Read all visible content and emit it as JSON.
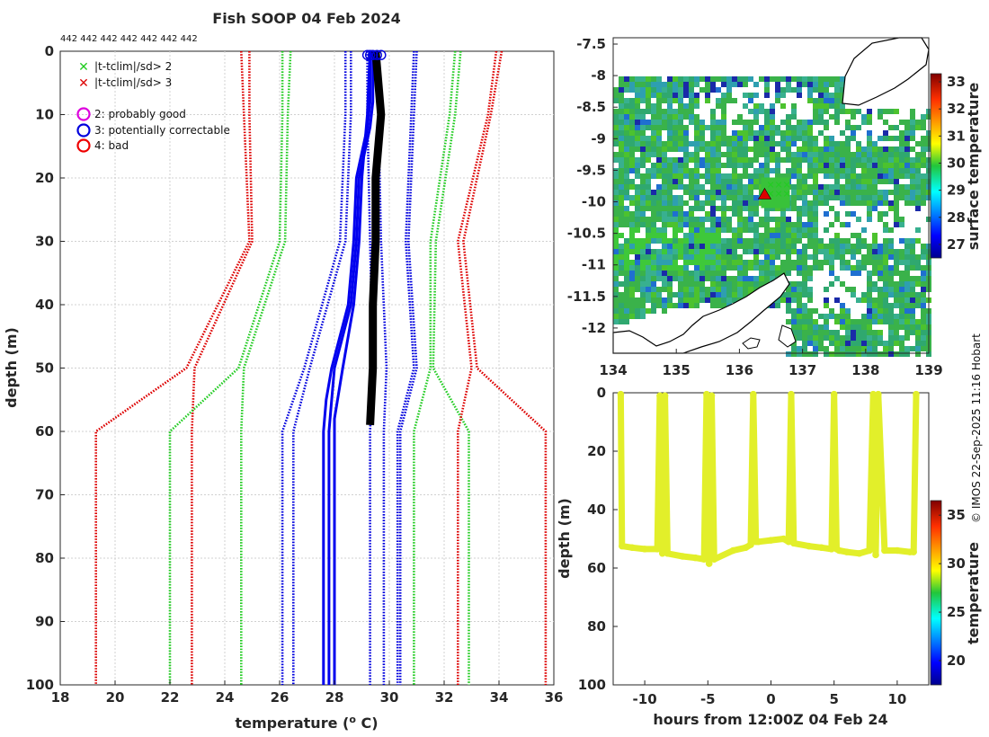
{
  "chart_data": [
    {
      "type": "line",
      "panel": "profile",
      "title": "Fish SOOP 04 Feb 2024",
      "top_counts": "442 442 442 442 442 442 442",
      "xlabel": "temperature (o C)",
      "xlabel_main": "temperature (",
      "xlabel_sup": "o",
      "xlabel_end": " C)",
      "ylabel": "depth (m)",
      "xlim": [
        18,
        36
      ],
      "ylim": [
        0,
        100
      ],
      "y_reversed": true,
      "x_ticks": [
        "18",
        "20",
        "22",
        "24",
        "26",
        "28",
        "30",
        "32",
        "34",
        "36"
      ],
      "y_ticks": [
        "0",
        "10",
        "20",
        "30",
        "40",
        "50",
        "60",
        "70",
        "80",
        "90",
        "100"
      ],
      "grid": true,
      "legend": [
        {
          "symbol": "x",
          "color": "#22cc22",
          "label": "|t-tclim|/sd> 2"
        },
        {
          "symbol": "x",
          "color": "#dd0000",
          "label": "|t-tclim|/sd> 3"
        },
        {
          "symbol": "o",
          "color": "#dd00dd",
          "label": "2: probably good"
        },
        {
          "symbol": "o",
          "color": "#0000dd",
          "label": "3: potentially correctable"
        },
        {
          "symbol": "o",
          "color": "#ee0000",
          "label": "4: bad"
        }
      ],
      "climatology_depths": [
        0,
        10,
        30,
        50,
        60,
        100
      ],
      "series": [
        {
          "name": "clim -3sd a",
          "color": "#dd0000",
          "style": "dotted",
          "values": [
            24.6,
            24.7,
            24.9,
            22.6,
            19.3,
            19.3
          ]
        },
        {
          "name": "clim -3sd b",
          "color": "#dd0000",
          "style": "dotted",
          "values": [
            24.9,
            24.9,
            25.0,
            22.9,
            22.8,
            22.8
          ]
        },
        {
          "name": "clim -2sd a",
          "color": "#22cc22",
          "style": "dotted",
          "values": [
            26.1,
            26.1,
            26.0,
            24.5,
            22.0,
            22.0
          ]
        },
        {
          "name": "clim -2sd b",
          "color": "#22cc22",
          "style": "dotted",
          "values": [
            26.4,
            26.3,
            26.2,
            24.7,
            24.6,
            24.6
          ]
        },
        {
          "name": "clim -1sd a",
          "color": "#0000dd",
          "style": "dotted",
          "values": [
            28.4,
            28.4,
            28.2,
            26.9,
            26.1,
            26.1
          ]
        },
        {
          "name": "clim -1sd b",
          "color": "#0000dd",
          "style": "dotted",
          "values": [
            28.6,
            28.6,
            28.4,
            27.1,
            26.5,
            26.5
          ]
        },
        {
          "name": "clim mean a",
          "color": "#0000dd",
          "style": "dotted",
          "values": [
            29.2,
            29.2,
            29.3,
            29.4,
            29.3,
            29.3
          ]
        },
        {
          "name": "clim mean b",
          "color": "#0000dd",
          "style": "dotted",
          "values": [
            29.6,
            29.6,
            29.7,
            29.9,
            29.8,
            29.8
          ]
        },
        {
          "name": "clim +1sd a",
          "color": "#0000dd",
          "style": "dotted",
          "values": [
            30.9,
            30.8,
            30.6,
            30.9,
            30.3,
            30.3
          ]
        },
        {
          "name": "clim +1sd b",
          "color": "#0000dd",
          "style": "dotted",
          "values": [
            31.0,
            30.9,
            30.7,
            31.0,
            30.4,
            30.4
          ]
        },
        {
          "name": "clim +2sd a",
          "color": "#22cc22",
          "style": "dotted",
          "values": [
            32.4,
            32.2,
            31.5,
            31.5,
            30.9,
            30.9
          ]
        },
        {
          "name": "clim +2sd b",
          "color": "#22cc22",
          "style": "dotted",
          "values": [
            32.6,
            32.4,
            31.7,
            31.6,
            32.9,
            32.9
          ]
        },
        {
          "name": "clim +3sd a",
          "color": "#dd0000",
          "style": "dotted",
          "values": [
            33.9,
            33.6,
            32.5,
            33.0,
            32.5,
            32.5
          ]
        },
        {
          "name": "clim +3sd b",
          "color": "#dd0000",
          "style": "dotted",
          "values": [
            34.1,
            33.7,
            32.7,
            33.2,
            35.7,
            35.7
          ]
        },
        {
          "name": "profile blue a",
          "color": "#0000ee",
          "style": "solid",
          "depths": [
            0,
            8,
            12,
            20,
            30,
            40,
            50,
            55,
            60,
            100
          ],
          "values": [
            29.3,
            29.3,
            29.2,
            28.8,
            28.7,
            28.5,
            27.9,
            27.7,
            27.6,
            27.6
          ]
        },
        {
          "name": "profile blue b",
          "color": "#0000ee",
          "style": "solid",
          "depths": [
            0,
            8,
            12,
            20,
            30,
            40,
            50,
            55,
            60,
            100
          ],
          "values": [
            29.4,
            29.4,
            29.3,
            28.9,
            28.8,
            28.6,
            28.0,
            27.9,
            27.8,
            27.8
          ]
        },
        {
          "name": "profile blue c",
          "color": "#0000ee",
          "style": "solid",
          "depths": [
            0,
            10,
            20,
            30,
            40,
            50,
            58,
            100
          ],
          "values": [
            29.3,
            29.2,
            29.0,
            28.9,
            28.7,
            28.3,
            28.0,
            28.0
          ]
        },
        {
          "name": "measured profile",
          "color": "#000000",
          "style": "solid",
          "depths": [
            0,
            5,
            10,
            15,
            20,
            30,
            40,
            50,
            59
          ],
          "values": [
            29.5,
            29.6,
            29.7,
            29.6,
            29.5,
            29.5,
            29.4,
            29.4,
            29.3
          ]
        }
      ],
      "flag_markers_depth0": [
        29.3,
        29.4,
        29.55,
        29.7,
        29.2
      ]
    },
    {
      "type": "heatmap",
      "panel": "map",
      "colorbar_label": "surface temperature",
      "colorbar_ticks": [
        "27",
        "28",
        "29",
        "30",
        "31",
        "32",
        "33"
      ],
      "colorbar_range": [
        26.5,
        33.3
      ],
      "x_ticks": [
        "134",
        "135",
        "136",
        "137",
        "138",
        "139"
      ],
      "y_ticks": [
        "-7.5",
        "-8",
        "-8.5",
        "-9",
        "-9.5",
        "-10",
        "-10.5",
        "-11",
        "-11.5",
        "-12"
      ],
      "xlim": [
        134,
        139
      ],
      "ylim": [
        -12.4,
        -7.4
      ],
      "marker": {
        "lon": 136.4,
        "lat": -9.9,
        "symbol": "triangle",
        "color": "#dd0000"
      }
    },
    {
      "type": "scatter",
      "panel": "depth-time",
      "xlabel": "hours from 12:00Z 04 Feb 24",
      "ylabel": "depth (m)",
      "xlim": [
        -12.5,
        12.5
      ],
      "ylim": [
        0,
        100
      ],
      "y_reversed": true,
      "x_ticks": [
        "-10",
        "-5",
        "0",
        "5",
        "10"
      ],
      "y_ticks": [
        "0",
        "20",
        "40",
        "60",
        "80",
        "100"
      ],
      "colorbar_label": "temperature",
      "colorbar_ticks": [
        "20",
        "25",
        "30",
        "35"
      ],
      "colorbar_range": [
        17.5,
        36.5
      ],
      "point_color": "#e2ef2a",
      "time_hours": [
        -11.9,
        -11.8,
        -11.0,
        -10.0,
        -9.0,
        -8.8,
        -8.6,
        -8.4,
        -8.2,
        -7.0,
        -6.0,
        -5.3,
        -5.1,
        -4.9,
        -4.7,
        -4.5,
        -3.0,
        -2.0,
        -1.6,
        -1.4,
        -1.2,
        -1.0,
        0.0,
        1.0,
        1.4,
        1.6,
        1.8,
        3.0,
        4.0,
        4.8,
        5.0,
        5.2,
        5.4,
        6.0,
        7.0,
        7.8,
        8.1,
        8.3,
        8.5,
        9.0,
        10.0,
        11.0,
        11.3,
        11.5
      ],
      "depth_m": [
        0.5,
        52.5,
        53.0,
        53.5,
        53.5,
        1.0,
        55.0,
        1.0,
        55.0,
        56.0,
        56.5,
        57.0,
        0.5,
        58.5,
        1.0,
        57.0,
        54.0,
        53.0,
        52.0,
        0.5,
        51.0,
        51.0,
        50.5,
        50.0,
        51.0,
        0.5,
        51.5,
        52.5,
        53.0,
        53.5,
        0.5,
        53.5,
        54.0,
        54.5,
        55.0,
        54.0,
        0.5,
        55.5,
        0.5,
        54.0,
        54.0,
        54.5,
        54.5,
        0.5
      ]
    }
  ],
  "credit": "© IMOS 22-Sep-2025 11:16 Hobart"
}
